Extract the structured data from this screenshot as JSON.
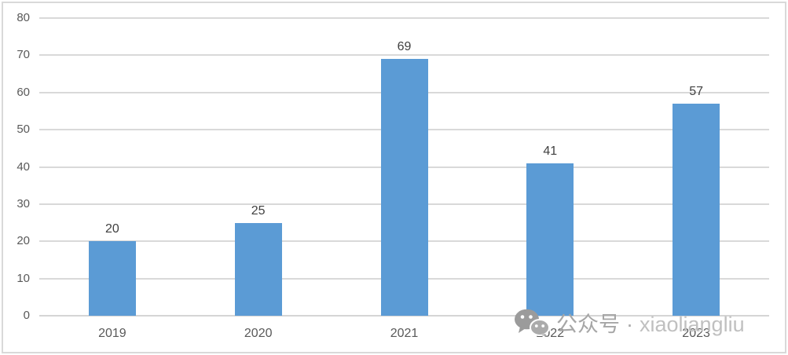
{
  "chart_data": {
    "type": "bar",
    "categories": [
      "2019",
      "2020",
      "2021",
      "2022",
      "2023"
    ],
    "values": [
      20,
      25,
      69,
      41,
      57
    ],
    "title": "",
    "xlabel": "",
    "ylabel": "",
    "ylim": [
      0,
      80
    ],
    "yticks": [
      0,
      10,
      20,
      30,
      40,
      50,
      60,
      70,
      80
    ],
    "grid": true,
    "legend": false,
    "data_labels": true,
    "bar_color": "#5B9BD5",
    "gridline_color": "#D9D9D9",
    "axis_line_color": "#D5D5D5",
    "tick_label_color": "#595959",
    "data_label_color": "#404040",
    "background_color": "#FFFFFF",
    "border_color": "#D9D9D9"
  },
  "watermark": {
    "icon": "wechat-icon",
    "cn_text": "公众号",
    "separator": "·",
    "en_text": "xiaoliangliu",
    "color": "#B3B3B3"
  }
}
